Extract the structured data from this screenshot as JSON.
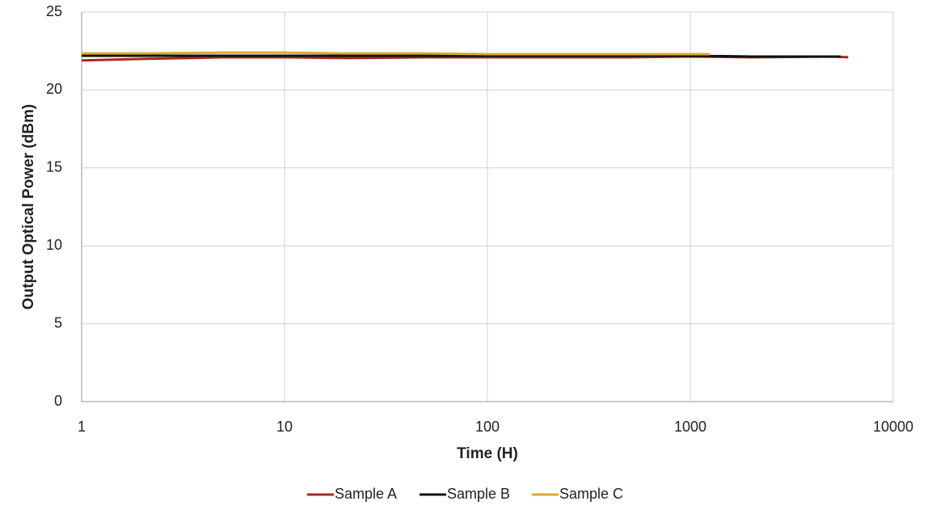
{
  "chart_data": {
    "type": "line",
    "x_label": "Time (H)",
    "y_label": "Output Optical Power (dBm)",
    "xscale": "log",
    "xlim": [
      1,
      10000
    ],
    "xticks": [
      1,
      10,
      100,
      1000,
      10000
    ],
    "ylim": [
      0,
      25
    ],
    "yticks": [
      0,
      5,
      10,
      15,
      20,
      25
    ],
    "grid": true,
    "legend": "bottom",
    "series": [
      {
        "name": "Sample A",
        "color": "#a52a1e",
        "x": [
          1,
          2,
          5,
          10,
          20,
          50,
          100,
          200,
          500,
          1000,
          2000,
          5000,
          6000
        ],
        "values": [
          21.9,
          22.0,
          22.1,
          22.1,
          22.05,
          22.1,
          22.1,
          22.1,
          22.1,
          22.15,
          22.1,
          22.15,
          22.1
        ]
      },
      {
        "name": "Sample B",
        "color": "#111111",
        "x": [
          1,
          2,
          5,
          10,
          20,
          50,
          100,
          200,
          500,
          1000,
          2000,
          5000,
          5500
        ],
        "values": [
          22.2,
          22.2,
          22.2,
          22.2,
          22.2,
          22.2,
          22.2,
          22.2,
          22.2,
          22.2,
          22.15,
          22.15,
          22.15
        ]
      },
      {
        "name": "Sample C",
        "color": "#d9ab2c",
        "x": [
          1,
          2,
          5,
          10,
          20,
          50,
          100,
          200,
          500,
          1000,
          1250
        ],
        "values": [
          22.35,
          22.35,
          22.4,
          22.4,
          22.35,
          22.35,
          22.3,
          22.3,
          22.3,
          22.3,
          22.3
        ]
      }
    ]
  }
}
